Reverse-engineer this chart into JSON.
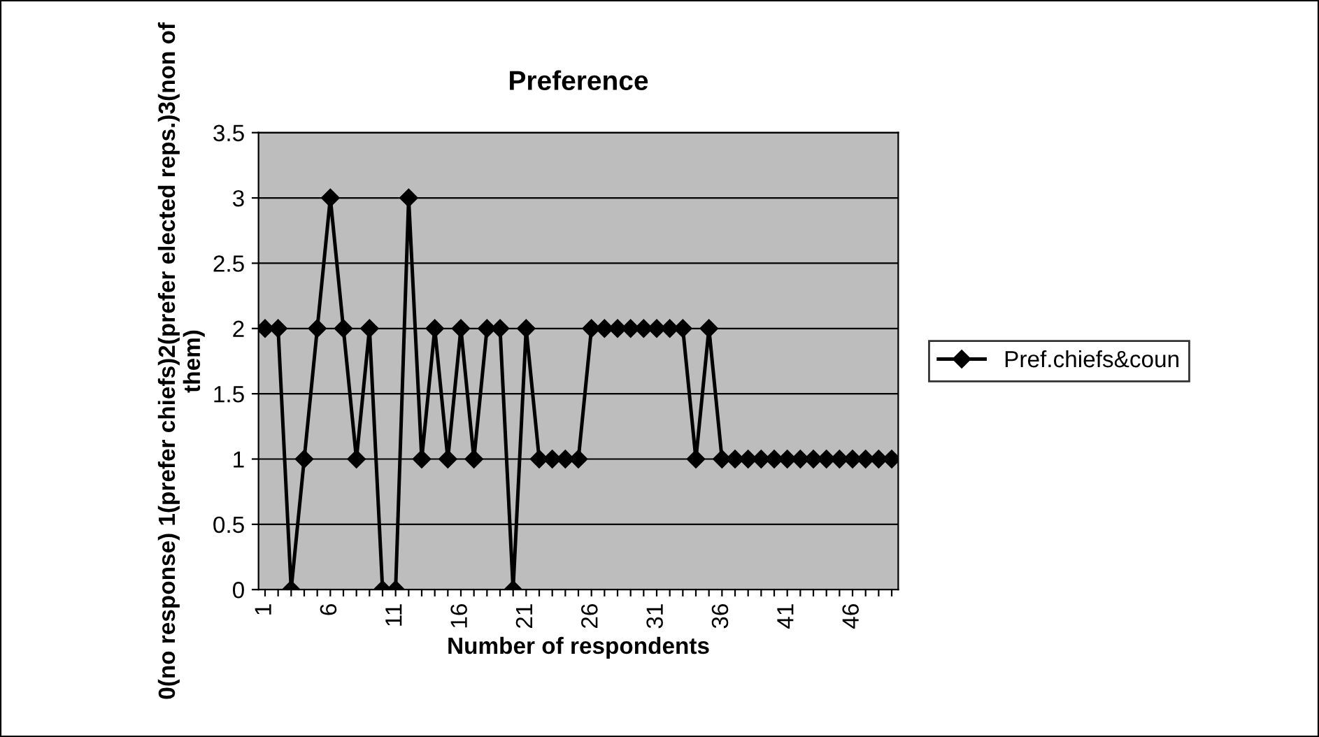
{
  "chart_data": {
    "type": "line",
    "title": "Preference",
    "xlabel": "Number of respondents",
    "ylabel": "0(no response) 1(prefer chiefs)2(prefer elected reps.)3(non of them)",
    "categories": [
      "1",
      null,
      null,
      null,
      null,
      "6",
      null,
      null,
      null,
      null,
      "11",
      null,
      null,
      null,
      null,
      "16",
      null,
      null,
      null,
      null,
      "21",
      null,
      null,
      null,
      null,
      "26",
      null,
      null,
      null,
      null,
      "31",
      null,
      null,
      null,
      null,
      "36",
      null,
      null,
      null,
      null,
      "41",
      null,
      null,
      null,
      null,
      "46",
      null,
      null,
      null
    ],
    "series": [
      {
        "name": "Pref.chiefs&coun",
        "color": "#000000",
        "values": [
          2,
          2,
          0,
          1,
          2,
          3,
          2,
          1,
          2,
          0,
          0,
          3,
          1,
          2,
          1,
          2,
          1,
          2,
          2,
          0,
          2,
          1,
          1,
          1,
          1,
          2,
          2,
          2,
          2,
          2,
          2,
          2,
          2,
          1,
          2,
          1,
          1,
          1,
          1,
          1,
          1,
          1,
          1,
          1,
          1,
          1,
          1,
          1,
          1
        ]
      }
    ],
    "ylim": [
      0,
      3.5
    ],
    "yticks": [
      0,
      0.5,
      1,
      1.5,
      2,
      2.5,
      3,
      3.5
    ],
    "grid": "y",
    "legend": "right",
    "marker": "diamond",
    "line_style": "solid"
  }
}
